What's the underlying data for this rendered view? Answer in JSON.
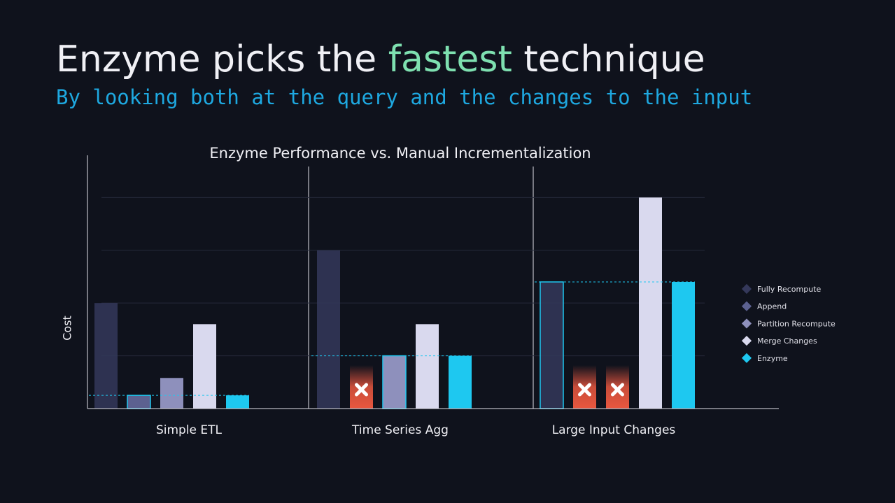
{
  "header": {
    "title_parts": [
      "Enzyme picks the ",
      "fastest",
      " technique"
    ],
    "subtitle": "By looking both at the query and the changes to the input"
  },
  "chart_data": {
    "type": "bar",
    "title": "Enzyme Performance vs. Manual Incrementalization",
    "y_label": "Cost",
    "categories": [
      "Simple ETL",
      "Time Series Agg",
      "Large Input Changes"
    ],
    "series": [
      {
        "name": "Fully Recompute",
        "color": "#34385a",
        "values": [
          2.0,
          3.0,
          2.4
        ]
      },
      {
        "name": "Append",
        "color": "#5c6190",
        "values": [
          0.25,
          null,
          null
        ]
      },
      {
        "name": "Partition Recompute",
        "color": "#8e90bc",
        "values": [
          0.58,
          1.0,
          null
        ]
      },
      {
        "name": "Merge Changes",
        "color": "#d9d9ee",
        "values": [
          1.6,
          1.6,
          4.0
        ]
      },
      {
        "name": "Enzyme",
        "color": "#1ec8f0",
        "values": [
          0.25,
          1.0,
          2.4
        ]
      }
    ],
    "ylim": [
      0,
      4.8
    ],
    "yticks": [
      1,
      2,
      3,
      4
    ],
    "grid": true,
    "legend": "right"
  }
}
